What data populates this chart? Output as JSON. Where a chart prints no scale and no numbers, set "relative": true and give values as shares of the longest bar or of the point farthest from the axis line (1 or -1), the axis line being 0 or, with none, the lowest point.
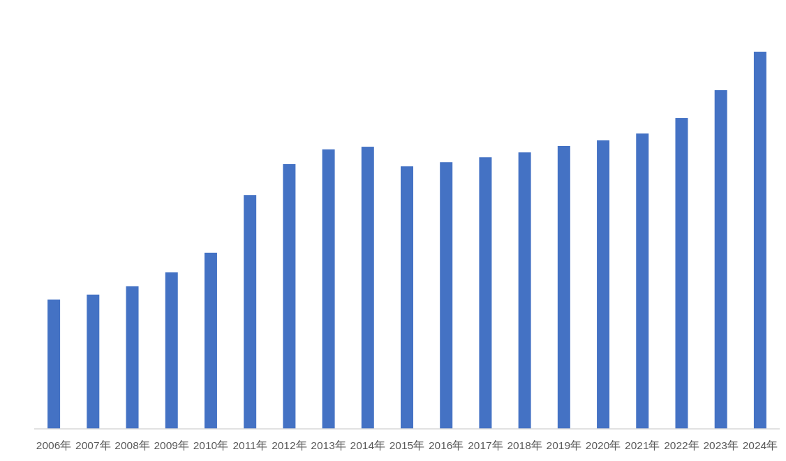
{
  "chart_data": {
    "type": "bar",
    "relative": true,
    "categories": [
      "2006年",
      "2007年",
      "2008年",
      "2009年",
      "2010年",
      "2011年",
      "2012年",
      "2013年",
      "2014年",
      "2015年",
      "2016年",
      "2017年",
      "2018年",
      "2019年",
      "2020年",
      "2021年",
      "2022年",
      "2023年",
      "2024年"
    ],
    "values": [
      0.343,
      0.356,
      0.378,
      0.415,
      0.467,
      0.62,
      0.702,
      0.741,
      0.748,
      0.696,
      0.707,
      0.72,
      0.733,
      0.75,
      0.765,
      0.783,
      0.824,
      0.898,
      1
    ],
    "color": "#4472c4"
  }
}
